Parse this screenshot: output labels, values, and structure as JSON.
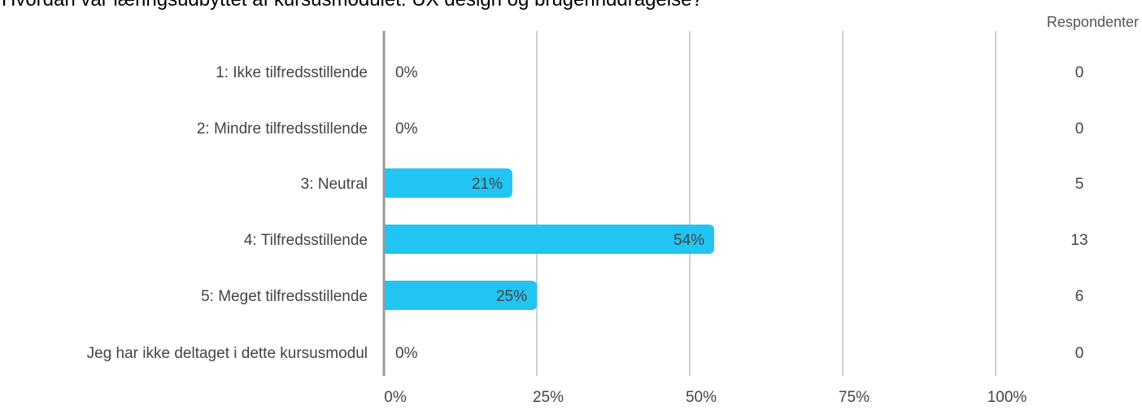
{
  "title": "Hvordan var læringsudbyttet af kursusmodulet: UX design og brugerinddragelse?",
  "respondents_header": "Respondenter",
  "colors": {
    "bar": "#22c4f2",
    "grid": "#b0b0b0",
    "axis": "#999999"
  },
  "chart_data": {
    "type": "bar",
    "orientation": "horizontal",
    "categories": [
      "1: Ikke tilfredsstillende",
      "2: Mindre tilfredsstillende",
      "3: Neutral",
      "4: Tilfredsstillende",
      "5: Meget tilfredsstillende",
      "Jeg har ikke deltaget i dette kursusmodul"
    ],
    "values": [
      0,
      0,
      21,
      54,
      25,
      0
    ],
    "value_labels": [
      "0%",
      "0%",
      "21%",
      "54%",
      "25%",
      "0%"
    ],
    "counts": [
      "0",
      "0",
      "5",
      "13",
      "6",
      "0"
    ],
    "xlim": [
      0,
      100
    ],
    "xticks": [
      0,
      25,
      50,
      75,
      100
    ],
    "xtick_labels": [
      "0%",
      "25%",
      "50%",
      "75%",
      "100%"
    ],
    "grid": true
  }
}
